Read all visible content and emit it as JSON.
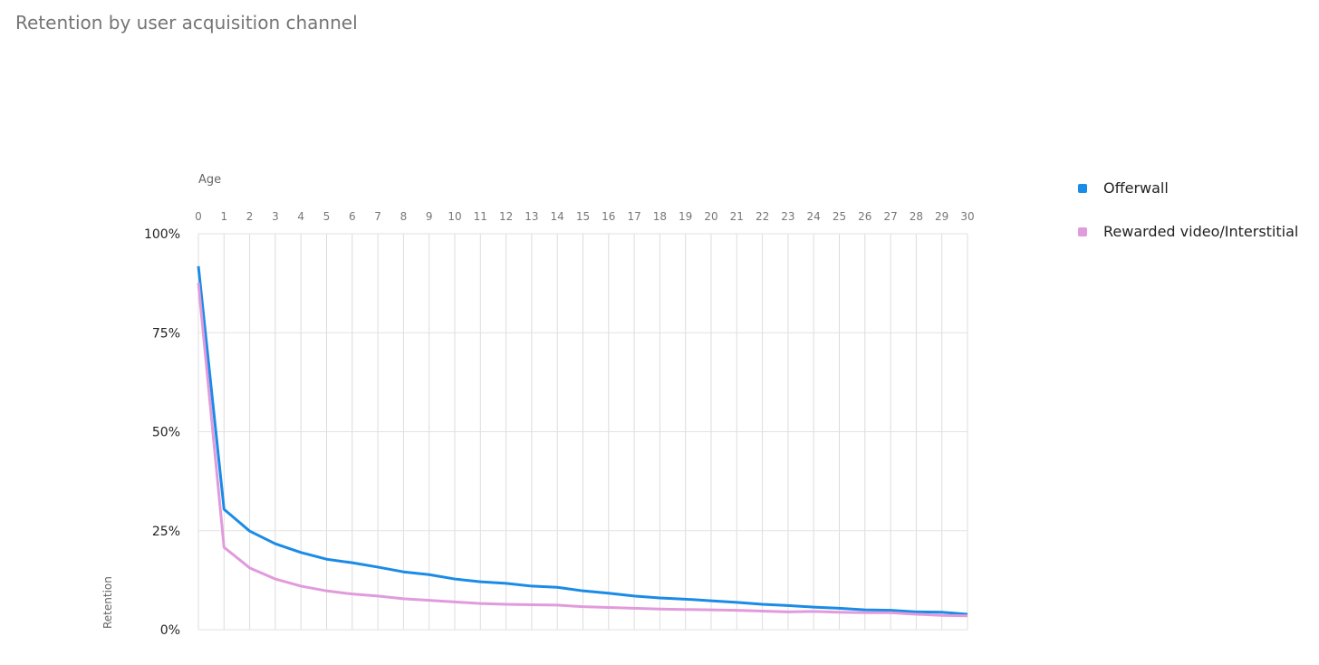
{
  "title": "Retention by user acquisition channel",
  "chart_data": {
    "type": "line",
    "title": "Retention by user acquisition channel",
    "xlabel": "Age",
    "ylabel": "Retention",
    "x": [
      0,
      1,
      2,
      3,
      4,
      5,
      6,
      7,
      8,
      9,
      10,
      11,
      12,
      13,
      14,
      15,
      16,
      17,
      18,
      19,
      20,
      21,
      22,
      23,
      24,
      25,
      26,
      27,
      28,
      29,
      30
    ],
    "x_tick_labels": [
      "0",
      "1",
      "2",
      "3",
      "4",
      "5",
      "6",
      "7",
      "8",
      "9",
      "10",
      "11",
      "12",
      "13",
      "14",
      "15",
      "16",
      "17",
      "18",
      "19",
      "20",
      "21",
      "22",
      "23",
      "24",
      "25",
      "26",
      "27",
      "28",
      "29",
      "30"
    ],
    "y_tick_values": [
      0,
      25,
      50,
      75,
      100
    ],
    "y_tick_labels": [
      "0%",
      "25%",
      "50%",
      "75%",
      "100%"
    ],
    "ylim": [
      0,
      100
    ],
    "xlim": [
      0,
      30
    ],
    "x_axis_position": "top",
    "grid": true,
    "legend_position": "right",
    "series": [
      {
        "name": "Offerwall",
        "color": "#1a8be6",
        "values": [
          91.8,
          30.4,
          24.9,
          21.7,
          19.5,
          17.8,
          16.9,
          15.8,
          14.6,
          13.9,
          12.8,
          12.1,
          11.7,
          11.0,
          10.7,
          9.8,
          9.2,
          8.5,
          8.0,
          7.7,
          7.3,
          6.9,
          6.4,
          6.1,
          5.7,
          5.4,
          5.0,
          4.9,
          4.5,
          4.4,
          3.9
        ]
      },
      {
        "name": "Rewarded video/Interstitial",
        "color": "#e19bdc",
        "values": [
          87.6,
          20.8,
          15.6,
          12.8,
          11.0,
          9.8,
          9.0,
          8.5,
          7.8,
          7.4,
          7.0,
          6.6,
          6.4,
          6.3,
          6.2,
          5.8,
          5.6,
          5.4,
          5.2,
          5.1,
          5.0,
          4.9,
          4.7,
          4.5,
          4.6,
          4.4,
          4.3,
          4.3,
          3.9,
          3.6,
          3.5
        ]
      }
    ]
  }
}
